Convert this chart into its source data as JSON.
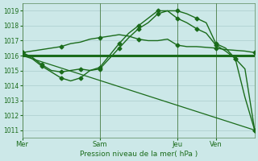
{
  "title": "Pression niveau de la mer( hPa )",
  "bg_color": "#cce8e8",
  "grid_color": "#aacccc",
  "line_color": "#1a6b1a",
  "vline_color": "#5a8a5a",
  "ylim": [
    1010.5,
    1019.5
  ],
  "yticks": [
    1011,
    1012,
    1013,
    1014,
    1015,
    1016,
    1017,
    1018,
    1019
  ],
  "xtick_labels": [
    "Mer",
    "Sam",
    "Jeu",
    "Ven"
  ],
  "xtick_positions": [
    0,
    24,
    48,
    60
  ],
  "xlim": [
    0,
    72
  ],
  "series": [
    {
      "x": [
        0,
        3,
        6,
        9,
        12,
        15,
        18,
        21,
        24,
        27,
        30,
        33,
        36,
        39,
        42,
        45,
        48,
        51,
        54,
        57,
        60,
        63,
        66,
        69,
        72
      ],
      "y": [
        1016.2,
        1016.3,
        1016.4,
        1016.5,
        1016.6,
        1016.8,
        1016.9,
        1017.1,
        1017.2,
        1017.3,
        1017.4,
        1017.3,
        1017.1,
        1017.0,
        1017.0,
        1017.1,
        1016.7,
        1016.6,
        1016.6,
        1016.55,
        1016.5,
        1016.4,
        1016.35,
        1016.3,
        1016.2
      ],
      "marker": "D",
      "markersize": 2.5,
      "linewidth": 1.0,
      "markevery": 4
    },
    {
      "x": [
        0,
        72
      ],
      "y": [
        1016.0,
        1016.0
      ],
      "marker": null,
      "markersize": 0,
      "linewidth": 2.2,
      "markevery": 1
    },
    {
      "x": [
        0,
        3,
        6,
        9,
        12,
        15,
        18,
        21,
        24,
        27,
        30,
        33,
        36,
        39,
        42,
        45,
        48,
        51,
        54,
        57,
        60,
        63,
        66,
        69,
        72
      ],
      "y": [
        1016.2,
        1015.9,
        1015.4,
        1015.0,
        1014.9,
        1015.0,
        1015.1,
        1015.0,
        1015.1,
        1015.8,
        1016.5,
        1017.2,
        1017.8,
        1018.2,
        1018.8,
        1019.0,
        1019.0,
        1018.8,
        1018.5,
        1018.2,
        1016.8,
        1016.5,
        1015.8,
        1015.1,
        1011.0
      ],
      "marker": "D",
      "markersize": 2.5,
      "linewidth": 1.0,
      "markevery": 2
    },
    {
      "x": [
        0,
        72
      ],
      "y": [
        1016.0,
        1011.0
      ],
      "marker": null,
      "markersize": 0,
      "linewidth": 0.9,
      "markevery": 1
    },
    {
      "x": [
        0,
        3,
        6,
        9,
        12,
        15,
        18,
        21,
        24,
        27,
        30,
        33,
        36,
        39,
        42,
        45,
        48,
        51,
        54,
        57,
        60,
        63,
        66,
        69,
        72
      ],
      "y": [
        1016.2,
        1015.8,
        1015.3,
        1014.9,
        1014.5,
        1014.3,
        1014.5,
        1015.0,
        1015.2,
        1016.0,
        1016.8,
        1017.5,
        1018.0,
        1018.5,
        1019.0,
        1019.0,
        1018.5,
        1018.2,
        1017.8,
        1017.5,
        1016.7,
        1016.3,
        1015.8,
        1013.2,
        1011.0
      ],
      "marker": "D",
      "markersize": 2.5,
      "linewidth": 1.0,
      "markevery": 2
    }
  ]
}
